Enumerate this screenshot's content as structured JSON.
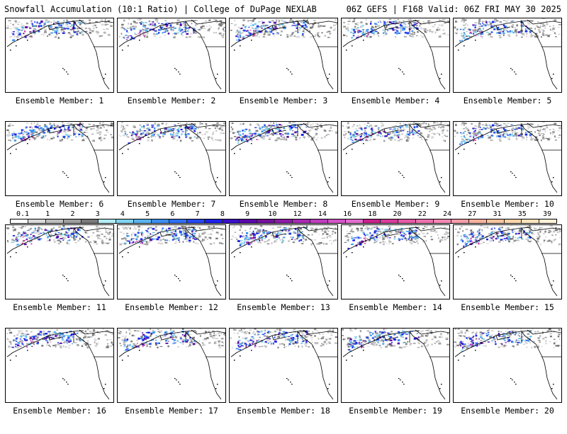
{
  "header": {
    "left": "Snowfall Accumulation (10:1 Ratio) | College of DuPage NEXLAB",
    "right": "06Z GEFS | F168 Valid: 06Z FRI MAY 30 2025"
  },
  "members": [
    {
      "label": "Ensemble Member: 1"
    },
    {
      "label": "Ensemble Member: 2"
    },
    {
      "label": "Ensemble Member: 3"
    },
    {
      "label": "Ensemble Member: 4"
    },
    {
      "label": "Ensemble Member: 5"
    },
    {
      "label": "Ensemble Member: 6"
    },
    {
      "label": "Ensemble Member: 7"
    },
    {
      "label": "Ensemble Member: 8"
    },
    {
      "label": "Ensemble Member: 9"
    },
    {
      "label": "Ensemble Member: 10"
    },
    {
      "label": "Ensemble Member: 11"
    },
    {
      "label": "Ensemble Member: 12"
    },
    {
      "label": "Ensemble Member: 13"
    },
    {
      "label": "Ensemble Member: 14"
    },
    {
      "label": "Ensemble Member: 15"
    },
    {
      "label": "Ensemble Member: 16"
    },
    {
      "label": "Ensemble Member: 17"
    },
    {
      "label": "Ensemble Member: 18"
    },
    {
      "label": "Ensemble Member: 19"
    },
    {
      "label": "Ensemble Member: 20"
    }
  ],
  "colorbar": {
    "labels": [
      "0.1",
      "1",
      "2",
      "3",
      "4",
      "5",
      "6",
      "7",
      "8",
      "9",
      "10",
      "12",
      "14",
      "16",
      "18",
      "20",
      "22",
      "24",
      "27",
      "31",
      "35",
      "39"
    ],
    "colors": [
      "#ffffff",
      "#d9d9d9",
      "#bdbdbd",
      "#9e9e9e",
      "#7a7a7a",
      "#b3ecf7",
      "#7fd3ef",
      "#5ab4ee",
      "#3a8ef0",
      "#2f6ef2",
      "#2448f0",
      "#1d22e6",
      "#3a10c8",
      "#5a0aa8",
      "#74109c",
      "#8e1aa8",
      "#a828b4",
      "#c03cc0",
      "#d454c8",
      "#e46cd0",
      "#c8208c",
      "#d83c9c",
      "#e45aa8",
      "#ee72b0",
      "#f488b4",
      "#f79ca8",
      "#f8b09c",
      "#f9c39c",
      "#fbd4a8",
      "#fde4bc",
      "#fff2d8"
    ]
  }
}
